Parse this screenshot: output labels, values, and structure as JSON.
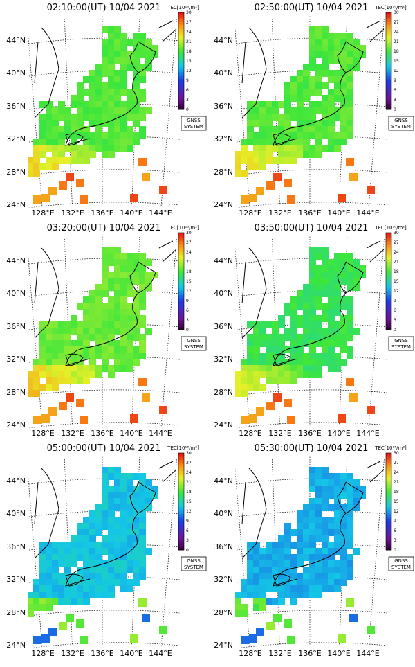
{
  "panels": [
    {
      "title": "02:10:00(UT) 10/04 2021",
      "hue": "mid"
    },
    {
      "title": "02:50:00(UT) 10/04 2021",
      "hue": "mid"
    },
    {
      "title": "03:20:00(UT) 10/04 2021",
      "hue": "midhot"
    },
    {
      "title": "03:50:00(UT) 10/04 2021",
      "hue": "midcool"
    },
    {
      "title": "05:00:00(UT) 10/04 2021",
      "hue": "cool"
    },
    {
      "title": "05:30:00(UT) 10/04 2021",
      "hue": "coolest"
    }
  ],
  "lat_labels": [
    "44°N",
    "40°N",
    "36°N",
    "32°N",
    "28°N",
    "24°N"
  ],
  "lon_labels": [
    "128°E",
    "132°E",
    "136°E",
    "140°E",
    "144°E"
  ],
  "colorbar": {
    "title": "TEC[10¹⁶/m²]",
    "ticks": [
      "30",
      "27",
      "24",
      "21",
      "18",
      "15",
      "12",
      "9",
      "6",
      "3",
      "0"
    ]
  },
  "badge": {
    "line1": "GNSS",
    "line2": "SYSTEM"
  }
}
